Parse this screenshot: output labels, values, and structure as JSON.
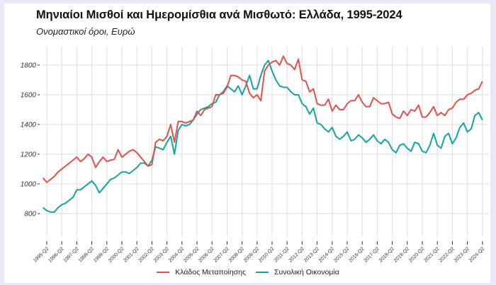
{
  "chart_data": {
    "type": "line",
    "title": "Μηνιαίοι Μισθοί και Ημερομίσθια ανά Μισθωτό: Ελλάδα, 1995-2024",
    "subtitle": "Ονομαστικοί όροι, Ευρώ",
    "xlabel": "",
    "ylabel": "",
    "x_start": "1995-Q1",
    "frequency": "quarterly",
    "ylim": [
      680,
      1900
    ],
    "yticks": [
      800,
      1000,
      1200,
      1400,
      1600,
      1800
    ],
    "xticks": [
      "1995-Q2",
      "1996-Q2",
      "1997-Q2",
      "1998-Q2",
      "1999-Q2",
      "2000-Q2",
      "2001-Q2",
      "2002-Q2",
      "2003-Q2",
      "2004-Q2",
      "2005-Q2",
      "2006-Q2",
      "2007-Q2",
      "2008-Q2",
      "2009-Q2",
      "2010-Q2",
      "2011-Q2",
      "2012-Q2",
      "2013-Q2",
      "2014-Q2",
      "2015-Q2",
      "2016-Q2",
      "2017-Q2",
      "2018-Q2",
      "2019-Q2",
      "2020-Q2",
      "2021-Q2",
      "2022-Q2",
      "2023-Q2",
      "2024-Q2"
    ],
    "grid": true,
    "legend_position": "bottom",
    "series": [
      {
        "name": "Κλάδος Μεταποίησης",
        "color": "#e0514a",
        "values": [
          1040,
          1010,
          1030,
          1050,
          1080,
          1100,
          1120,
          1140,
          1160,
          1180,
          1150,
          1170,
          1200,
          1180,
          1110,
          1150,
          1180,
          1150,
          1160,
          1165,
          1230,
          1180,
          1200,
          1220,
          1230,
          1210,
          1180,
          1150,
          1120,
          1130,
          1280,
          1300,
          1290,
          1320,
          1400,
          1280,
          1420,
          1420,
          1410,
          1420,
          1430,
          1490,
          1460,
          1500,
          1510,
          1520,
          1600,
          1600,
          1610,
          1650,
          1730,
          1730,
          1720,
          1700,
          1690,
          1610,
          1580,
          1600,
          1560,
          1760,
          1800,
          1820,
          1830,
          1800,
          1860,
          1810,
          1800,
          1770,
          1840,
          1700,
          1690,
          1620,
          1640,
          1540,
          1530,
          1530,
          1570,
          1490,
          1530,
          1500,
          1500,
          1540,
          1560,
          1560,
          1600,
          1550,
          1520,
          1520,
          1580,
          1560,
          1540,
          1540,
          1550,
          1470,
          1450,
          1440,
          1490,
          1460,
          1500,
          1490,
          1530,
          1450,
          1450,
          1480,
          1520,
          1460,
          1480,
          1460,
          1500,
          1510,
          1550,
          1570,
          1570,
          1600,
          1610,
          1630,
          1640,
          1690
        ]
      },
      {
        "name": "Συνολική Οικονομία",
        "color": "#14a3a3",
        "values": [
          840,
          820,
          810,
          810,
          840,
          860,
          870,
          890,
          910,
          960,
          960,
          980,
          1000,
          1020,
          990,
          940,
          970,
          1000,
          1030,
          1040,
          1060,
          1080,
          1080,
          1070,
          1090,
          1110,
          1140,
          1140,
          1120,
          1160,
          1250,
          1240,
          1230,
          1280,
          1320,
          1200,
          1360,
          1400,
          1390,
          1400,
          1430,
          1470,
          1500,
          1510,
          1520,
          1540,
          1550,
          1600,
          1620,
          1660,
          1640,
          1620,
          1660,
          1600,
          1660,
          1730,
          1640,
          1640,
          1730,
          1800,
          1830,
          1760,
          1700,
          1660,
          1650,
          1650,
          1620,
          1600,
          1600,
          1540,
          1520,
          1470,
          1510,
          1410,
          1400,
          1370,
          1350,
          1380,
          1320,
          1300,
          1320,
          1350,
          1290,
          1300,
          1330,
          1310,
          1280,
          1300,
          1330,
          1290,
          1270,
          1300,
          1280,
          1230,
          1210,
          1260,
          1270,
          1240,
          1220,
          1280,
          1270,
          1220,
          1210,
          1260,
          1340,
          1260,
          1240,
          1320,
          1340,
          1270,
          1310,
          1380,
          1410,
          1350,
          1370,
          1460,
          1480,
          1430
        ]
      }
    ]
  }
}
